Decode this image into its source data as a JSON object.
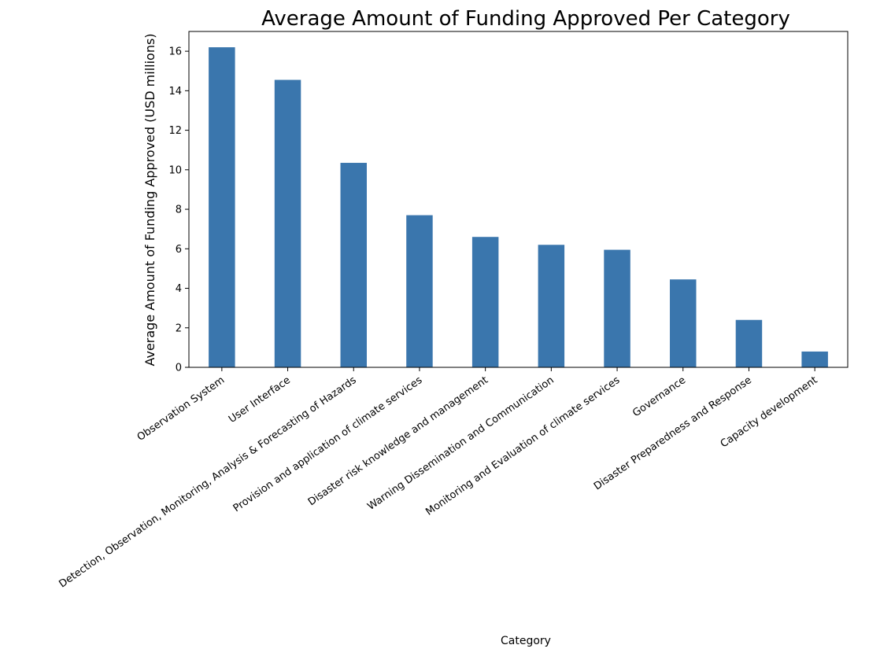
{
  "chart_data": {
    "type": "bar",
    "title": "Average Amount of Funding Approved Per Category",
    "xlabel": "Category",
    "ylabel": "Average Amount of Funding Approved (USD millions)",
    "categories": [
      "Observation System",
      "User Interface",
      "Detection, Observation, Monitoring, Analysis & Forecasting of Hazards",
      "Provision and application of climate services",
      "Disaster risk knowledge and management",
      "Warning Dissemination and Communication",
      "Monitoring and Evaluation of climate services",
      "Governance",
      "Disaster Preparedness and Response",
      "Capacity development"
    ],
    "values": [
      16.2,
      14.55,
      10.35,
      7.7,
      6.6,
      6.2,
      5.95,
      4.45,
      2.4,
      0.8
    ],
    "yticks": [
      "0",
      "2",
      "4",
      "6",
      "8",
      "10",
      "12",
      "14",
      "16"
    ],
    "ylim": [
      0,
      17
    ],
    "bar_color": "#3a76ad",
    "grid": false,
    "legend": "none"
  }
}
